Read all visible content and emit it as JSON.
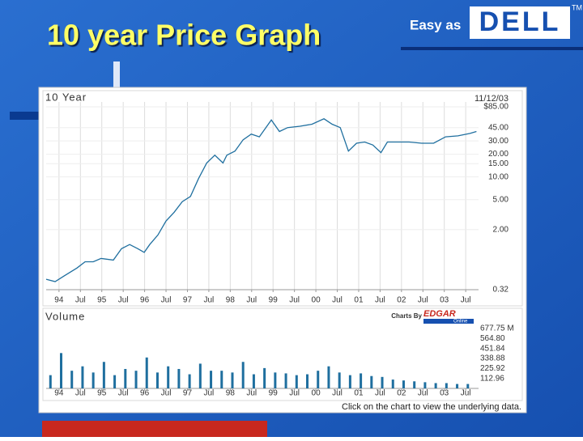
{
  "slide": {
    "title": "10 year Price Graph",
    "logo_tagline": "Easy as",
    "logo": "DELL",
    "trademark": "TM"
  },
  "chart_data": [
    {
      "type": "line",
      "title": "10 Year",
      "date": "11/12/03",
      "color": "#1f6f9f",
      "log_scale": true,
      "grid": true,
      "x": [
        1993.7,
        1993.91,
        1994.13,
        1994.42,
        1994.61,
        1994.8,
        1994.98,
        1995.27,
        1995.46,
        1995.65,
        1995.84,
        1995.99,
        1996.12,
        1996.31,
        1996.5,
        1996.69,
        1996.88,
        1997.07,
        1997.26,
        1997.45,
        1997.64,
        1997.83,
        1997.92,
        1998.11,
        1998.3,
        1998.49,
        1998.68,
        1998.96,
        1999.15,
        1999.34,
        1999.63,
        1999.91,
        2000.19,
        2000.38,
        2000.57,
        2000.76,
        2000.95,
        2001.14,
        2001.33,
        2001.52,
        2001.67,
        2001.9,
        2002.18,
        2002.47,
        2002.75,
        2003.03,
        2003.32,
        2003.6,
        2003.75
      ],
      "values": [
        0.44,
        0.41,
        0.49,
        0.62,
        0.75,
        0.75,
        0.83,
        0.79,
        1.12,
        1.27,
        1.12,
        1.0,
        1.27,
        1.7,
        2.6,
        3.4,
        4.7,
        5.5,
        9.5,
        15.3,
        19.4,
        15.3,
        19.4,
        22,
        31,
        37,
        34,
        57,
        40,
        45,
        47,
        50,
        59,
        50,
        45,
        22,
        28,
        29,
        26.5,
        21,
        29,
        29,
        29,
        28,
        28,
        34,
        35,
        37.7,
        40
      ],
      "xlim": [
        1993.7,
        2003.8
      ],
      "xticks": [
        {
          "value": 1994,
          "label": "94"
        },
        {
          "value": 1994.5,
          "label": "Jul"
        },
        {
          "value": 1995,
          "label": "95"
        },
        {
          "value": 1995.5,
          "label": "Jul"
        },
        {
          "value": 1996,
          "label": "96"
        },
        {
          "value": 1996.5,
          "label": "Jul"
        },
        {
          "value": 1997,
          "label": "97"
        },
        {
          "value": 1997.5,
          "label": "Jul"
        },
        {
          "value": 1998,
          "label": "98"
        },
        {
          "value": 1998.5,
          "label": "Jul"
        },
        {
          "value": 1999,
          "label": "99"
        },
        {
          "value": 1999.5,
          "label": "Jul"
        },
        {
          "value": 2000,
          "label": "00"
        },
        {
          "value": 2000.5,
          "label": "Jul"
        },
        {
          "value": 2001,
          "label": "01"
        },
        {
          "value": 2001.5,
          "label": "Jul"
        },
        {
          "value": 2002,
          "label": "02"
        },
        {
          "value": 2002.5,
          "label": "Jul"
        },
        {
          "value": 2003,
          "label": "03"
        },
        {
          "value": 2003.5,
          "label": "Jul"
        }
      ],
      "ylim": [
        0.32,
        85
      ],
      "yticks": [
        {
          "value": 85,
          "label": "$85.00"
        },
        {
          "value": 45,
          "label": "45.00"
        },
        {
          "value": 30,
          "label": "30.00"
        },
        {
          "value": 20,
          "label": "20.00"
        },
        {
          "value": 15,
          "label": "15.00"
        },
        {
          "value": 10,
          "label": "10.00"
        },
        {
          "value": 5,
          "label": "5.00"
        },
        {
          "value": 2,
          "label": "2.00"
        },
        {
          "value": 0.32,
          "label": "0.32"
        }
      ]
    },
    {
      "type": "bar",
      "title": "Volume",
      "credit": "Charts By",
      "source": "EDGAR",
      "source_sub": "Online",
      "color": "#1f6f9f",
      "x": [
        1993.8,
        1994.05,
        1994.3,
        1994.55,
        1994.8,
        1995.05,
        1995.3,
        1995.55,
        1995.8,
        1996.05,
        1996.3,
        1996.55,
        1996.8,
        1997.05,
        1997.3,
        1997.55,
        1997.8,
        1998.05,
        1998.3,
        1998.55,
        1998.8,
        1999.05,
        1999.3,
        1999.55,
        1999.8,
        2000.05,
        2000.3,
        2000.55,
        2000.8,
        2001.05,
        2001.3,
        2001.55,
        2001.8,
        2002.05,
        2002.3,
        2002.55,
        2002.8,
        2003.05,
        2003.3,
        2003.55
      ],
      "values": [
        150,
        400,
        200,
        250,
        180,
        300,
        150,
        220,
        200,
        350,
        180,
        250,
        220,
        160,
        280,
        200,
        200,
        180,
        300,
        160,
        230,
        180,
        170,
        150,
        160,
        200,
        250,
        180,
        150,
        170,
        140,
        130,
        100,
        90,
        80,
        70,
        60,
        60,
        50,
        50
      ],
      "xlim": [
        1993.7,
        2003.8
      ],
      "xticks": [
        {
          "value": 1994,
          "label": "94"
        },
        {
          "value": 1994.5,
          "label": "Jul"
        },
        {
          "value": 1995,
          "label": "95"
        },
        {
          "value": 1995.5,
          "label": "Jul"
        },
        {
          "value": 1996,
          "label": "96"
        },
        {
          "value": 1996.5,
          "label": "Jul"
        },
        {
          "value": 1997,
          "label": "97"
        },
        {
          "value": 1997.5,
          "label": "Jul"
        },
        {
          "value": 1998,
          "label": "98"
        },
        {
          "value": 1998.5,
          "label": "Jul"
        },
        {
          "value": 1999,
          "label": "99"
        },
        {
          "value": 1999.5,
          "label": "Jul"
        },
        {
          "value": 2000,
          "label": "00"
        },
        {
          "value": 2000.5,
          "label": "Jul"
        },
        {
          "value": 2001,
          "label": "01"
        },
        {
          "value": 2001.5,
          "label": "Jul"
        },
        {
          "value": 2002,
          "label": "02"
        },
        {
          "value": 2002.5,
          "label": "Jul"
        },
        {
          "value": 2003,
          "label": "03"
        },
        {
          "value": 2003.5,
          "label": "Jul"
        }
      ],
      "ylim": [
        0,
        677.75
      ],
      "yticks": [
        {
          "value": 677.75,
          "label": "677.75 M"
        },
        {
          "value": 564.8,
          "label": "564.80"
        },
        451.84,
        338.88,
        225.92,
        112.96
      ]
    }
  ],
  "footer": "Click on the chart to view the underlying data."
}
